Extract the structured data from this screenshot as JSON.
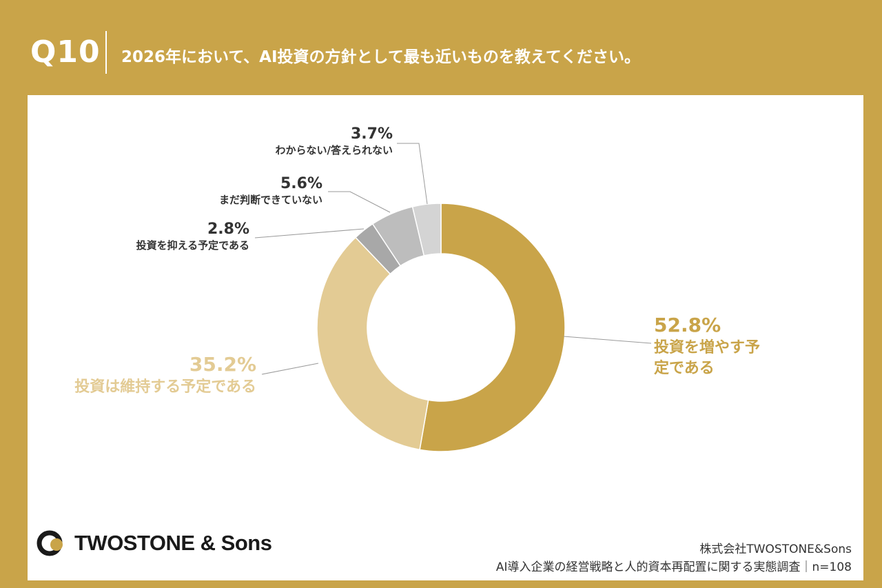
{
  "header": {
    "question_number": "Q10",
    "question_text": "2026年において、AI投資の方針として最も近いものを教えてください。"
  },
  "colors": {
    "frame": "#c9a449",
    "increase": "#c9a449",
    "maintain": "#e3cb94",
    "decrease": "#a8a8a8",
    "undecided": "#bdbdbd",
    "unknown": "#d4d4d4"
  },
  "chart_data": {
    "type": "pie",
    "variant": "donut",
    "slices": [
      {
        "label": "投資を増やす予定である",
        "value": 52.8,
        "value_label": "52.8%",
        "color": "#c9a449",
        "label_color": "#c9a449"
      },
      {
        "label": "投資は維持する予定である",
        "value": 35.2,
        "value_label": "35.2%",
        "color": "#e3cb94",
        "label_color": "#e3cb94"
      },
      {
        "label": "投資を抑える予定である",
        "value": 2.8,
        "value_label": "2.8%",
        "color": "#a8a8a8",
        "label_color": "#333333"
      },
      {
        "label": "まだ判断できていない",
        "value": 5.6,
        "value_label": "5.6%",
        "color": "#bdbdbd",
        "label_color": "#333333"
      },
      {
        "label": "わからない/答えられない",
        "value": 3.7,
        "value_label": "3.7%",
        "color": "#d4d4d4",
        "label_color": "#333333"
      }
    ]
  },
  "footer": {
    "brand": "TWOSTONE & Sons",
    "company": "株式会社TWOSTONE&Sons",
    "survey": "AI導入企業の経営戦略と人的資本再配置に関する実態調査｜n=108"
  }
}
